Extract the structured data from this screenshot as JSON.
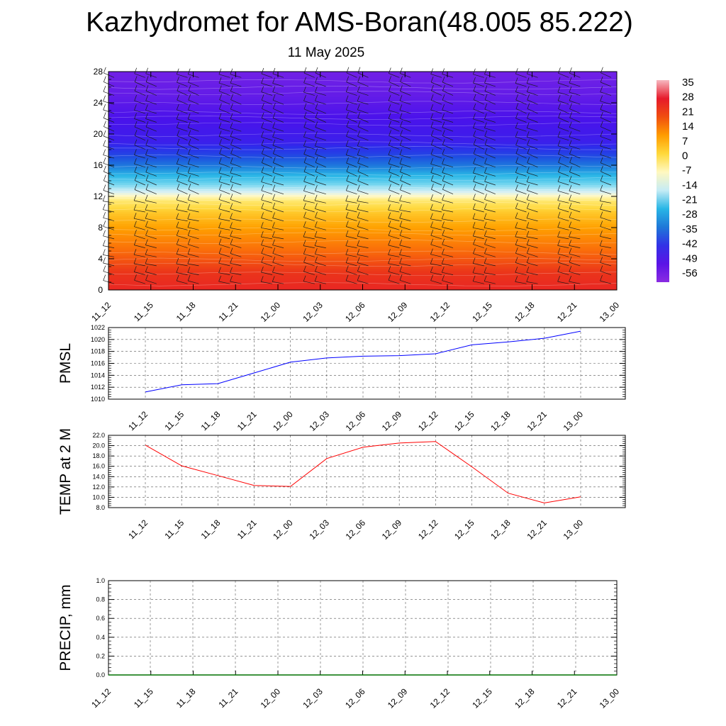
{
  "title": "Kazhydromet for AMS-Boran(48.005 85.222)",
  "subtitle": "11 May 2025",
  "chart_data": [
    {
      "type": "heatmap",
      "name": "temperature profile with wind barbs",
      "x_tick_labels": [
        "11_12",
        "11_15",
        "11_18",
        "11_21",
        "12_00",
        "12_03",
        "12_06",
        "12_09",
        "12_12",
        "12_15",
        "12_18",
        "12_21",
        "13_00"
      ],
      "y_tick_labels": [
        "0",
        "4",
        "8",
        "12",
        "16",
        "20",
        "24",
        "28"
      ],
      "ylim": [
        0,
        28
      ],
      "colorbar": {
        "labels": [
          "35",
          "28",
          "21",
          "14",
          "7",
          "0",
          "-7",
          "-14",
          "-21",
          "-28",
          "-35",
          "-42",
          "-49",
          "-56"
        ],
        "colors": [
          "#f7b8c0",
          "#e61a2b",
          "#f04e10",
          "#ff9c00",
          "#ffd93b",
          "#fff8c0",
          "#c6ecf5",
          "#29b6e6",
          "#1e78d8",
          "#3232e6",
          "#5a14e6",
          "#8a2be2"
        ]
      },
      "profile": {
        "levels": [
          0,
          2,
          4,
          6,
          8,
          10,
          11.5,
          12.5,
          14,
          16,
          17.5,
          19,
          22,
          25,
          28
        ],
        "temps": [
          25,
          22,
          17,
          12,
          7,
          2,
          -4,
          -14,
          -24,
          -35,
          -45,
          -52,
          -55,
          -57,
          -58
        ]
      }
    },
    {
      "type": "line",
      "ylabel": "PMSL",
      "categories": [
        "11_12",
        "11_15",
        "11_18",
        "11_21",
        "12_00",
        "12_03",
        "12_06",
        "12_09",
        "12_12",
        "12_15",
        "12_18",
        "12_21",
        "13_00"
      ],
      "y_tick_labels": [
        "1010",
        "1012",
        "1014",
        "1016",
        "1018",
        "1020",
        "1022"
      ],
      "ylim": [
        1010,
        1022
      ],
      "series": [
        {
          "values": [
            1011.2,
            1012.4,
            1012.6,
            1014.4,
            1016.2,
            1016.9,
            1017.2,
            1017.3,
            1017.6,
            1019.1,
            1019.6,
            1020.2,
            1021.4
          ],
          "color": "#0000ff"
        }
      ]
    },
    {
      "type": "line",
      "ylabel": "TEMP at 2 M",
      "categories": [
        "11_12",
        "11_15",
        "11_18",
        "11_21",
        "12_00",
        "12_03",
        "12_06",
        "12_09",
        "12_12",
        "12_15",
        "12_18",
        "12_21",
        "13_00"
      ],
      "y_tick_labels": [
        "8.0",
        "10.0",
        "12.0",
        "14.0",
        "16.0",
        "18.0",
        "20.0",
        "22.0"
      ],
      "ylim": [
        8,
        22
      ],
      "series": [
        {
          "values": [
            20.1,
            16.1,
            14.2,
            12.3,
            12.1,
            17.5,
            19.7,
            20.5,
            20.8,
            15.9,
            10.8,
            8.9,
            10.1
          ],
          "color": "#ff0000"
        }
      ]
    },
    {
      "type": "line",
      "ylabel": "PRECIP, mm",
      "categories": [
        "11_12",
        "11_15",
        "11_18",
        "11_21",
        "12_00",
        "12_03",
        "12_06",
        "12_09",
        "12_12",
        "12_15",
        "12_18",
        "12_21",
        "13_00"
      ],
      "y_tick_labels": [
        "0.0",
        "0.2",
        "0.4",
        "0.6",
        "0.8",
        "1.0"
      ],
      "ylim": [
        0,
        1
      ],
      "series": [
        {
          "values": [
            0,
            0,
            0,
            0,
            0,
            0,
            0,
            0,
            0,
            0,
            0,
            0,
            0
          ],
          "color": "#007000"
        }
      ]
    }
  ]
}
